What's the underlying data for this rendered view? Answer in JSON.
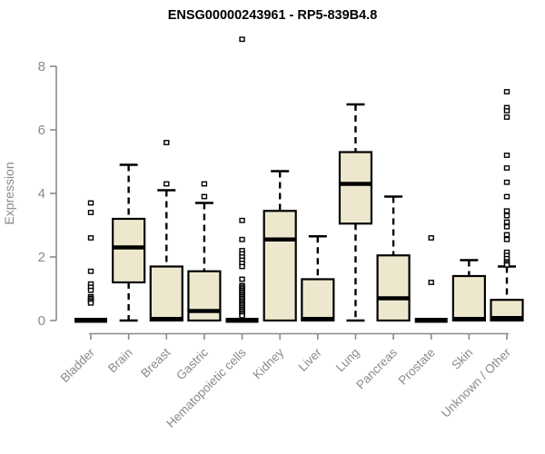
{
  "title": "ENSG00000243961 - RP5-839B4.8",
  "chart_data": {
    "type": "boxplot",
    "title": "ENSG00000243961 - RP5-839B4.8",
    "xlabel": "",
    "ylabel": "Expression",
    "ylim": [
      0,
      8
    ],
    "yticks": [
      0,
      2,
      4,
      6,
      8
    ],
    "grid": false,
    "legend": "none",
    "box_fill_color": "#ede8cd",
    "box_stroke_color": "#000000",
    "axis_color": "#8a8a8a",
    "categories": [
      "Bladder",
      "Brain",
      "Breast",
      "Gastric",
      "Hematopoietic cells",
      "Kidney",
      "Liver",
      "Lung",
      "Pancreas",
      "Prostate",
      "Skin",
      "Unknown / Other"
    ],
    "series": [
      {
        "category": "Bladder",
        "q1": 0,
        "median": 0,
        "q3": 0,
        "whisker_low": 0,
        "whisker_high": 0,
        "collapsed": true,
        "outliers": [
          3.7,
          3.4,
          2.6,
          1.55,
          1.15,
          1.05,
          0.95,
          0.75,
          0.7,
          0.65,
          0.6,
          0.55
        ]
      },
      {
        "category": "Brain",
        "q1": 1.2,
        "median": 2.3,
        "q3": 3.2,
        "whisker_low": 0,
        "whisker_high": 4.9,
        "collapsed": false,
        "outliers": []
      },
      {
        "category": "Breast",
        "q1": 0,
        "median": 0.05,
        "q3": 1.7,
        "whisker_low": 0,
        "whisker_high": 4.1,
        "collapsed": false,
        "outliers": [
          5.6,
          4.3
        ]
      },
      {
        "category": "Gastric",
        "q1": 0,
        "median": 0.3,
        "q3": 1.55,
        "whisker_low": 0,
        "whisker_high": 3.7,
        "collapsed": false,
        "outliers": [
          4.3,
          3.9
        ]
      },
      {
        "category": "Hematopoietic cells",
        "q1": 0,
        "median": 0,
        "q3": 0,
        "whisker_low": 0,
        "whisker_high": 0,
        "collapsed": true,
        "outliers": [
          8.85,
          3.15,
          2.55,
          2.2,
          2.1,
          2.0,
          1.9,
          1.8,
          1.7,
          1.3,
          1.1,
          1.05,
          1.0,
          0.95,
          0.9,
          0.85,
          0.8,
          0.75,
          0.7,
          0.65,
          0.6,
          0.55,
          0.5,
          0.45,
          0.4,
          0.35,
          0.3,
          0.25,
          0.2,
          0.15
        ]
      },
      {
        "category": "Kidney",
        "q1": 0,
        "median": 2.55,
        "q3": 3.45,
        "whisker_low": 0,
        "whisker_high": 4.7,
        "collapsed": false,
        "outliers": []
      },
      {
        "category": "Liver",
        "q1": 0,
        "median": 0.05,
        "q3": 1.3,
        "whisker_low": 0,
        "whisker_high": 2.65,
        "collapsed": false,
        "outliers": []
      },
      {
        "category": "Lung",
        "q1": 3.05,
        "median": 4.3,
        "q3": 5.3,
        "whisker_low": 0,
        "whisker_high": 6.8,
        "collapsed": false,
        "outliers": []
      },
      {
        "category": "Pancreas",
        "q1": 0,
        "median": 0.7,
        "q3": 2.05,
        "whisker_low": 0,
        "whisker_high": 3.9,
        "collapsed": false,
        "outliers": []
      },
      {
        "category": "Prostate",
        "q1": 0,
        "median": 0,
        "q3": 0,
        "whisker_low": 0,
        "whisker_high": 0,
        "collapsed": true,
        "outliers": [
          2.6,
          1.2
        ]
      },
      {
        "category": "Skin",
        "q1": 0,
        "median": 0.05,
        "q3": 1.4,
        "whisker_low": 0,
        "whisker_high": 1.9,
        "collapsed": false,
        "outliers": []
      },
      {
        "category": "Unknown / Other",
        "q1": 0,
        "median": 0.08,
        "q3": 0.65,
        "whisker_low": 0,
        "whisker_high": 1.7,
        "collapsed": false,
        "outliers": [
          7.2,
          6.7,
          6.6,
          6.4,
          5.2,
          4.8,
          4.35,
          3.9,
          3.45,
          3.3,
          3.1,
          2.95,
          2.7,
          2.55,
          2.15,
          2.05,
          1.95,
          1.85,
          1.8,
          1.75
        ]
      }
    ]
  }
}
